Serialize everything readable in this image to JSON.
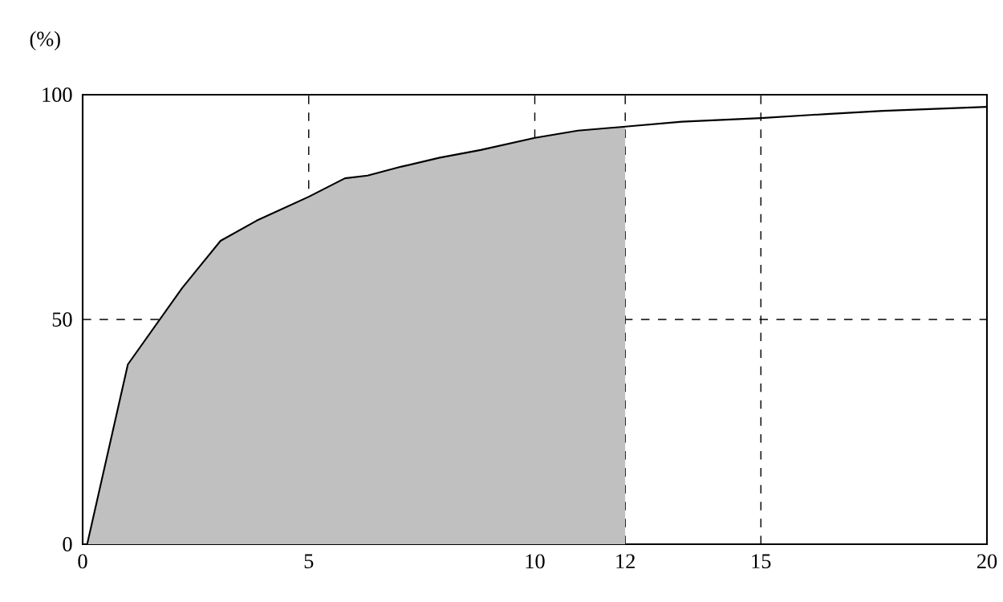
{
  "chart_data": {
    "type": "line",
    "ylabel": "(%)",
    "xlim": [
      0,
      20
    ],
    "ylim": [
      0,
      100
    ],
    "xticks": [
      0,
      5,
      10,
      12,
      15,
      20
    ],
    "yticks": [
      0,
      50,
      100
    ],
    "grid": true,
    "series": [
      {
        "type": "area",
        "color": "#c0c0c0",
        "x": [
          0.1,
          1,
          2.2,
          3.05,
          3.85,
          5,
          5.8,
          6.3,
          7.05,
          7.9,
          8.8,
          10,
          10.95,
          12
        ],
        "values": [
          0,
          40,
          57,
          67.5,
          72,
          77.3,
          81.4,
          82,
          84,
          86,
          87.7,
          90.4,
          92,
          92.9
        ]
      },
      {
        "color": "#000000",
        "x": [
          0.1,
          1,
          2.2,
          3.05,
          3.85,
          5,
          5.8,
          6.3,
          7.05,
          7.9,
          8.8,
          10,
          10.95,
          12,
          13.25,
          15,
          16.45,
          17.7,
          20
        ],
        "values": [
          0,
          40,
          57,
          67.5,
          72,
          77.3,
          81.4,
          82,
          84,
          86,
          87.7,
          90.4,
          92,
          92.9,
          94,
          94.8,
          95.7,
          96.4,
          97.3
        ]
      }
    ]
  }
}
